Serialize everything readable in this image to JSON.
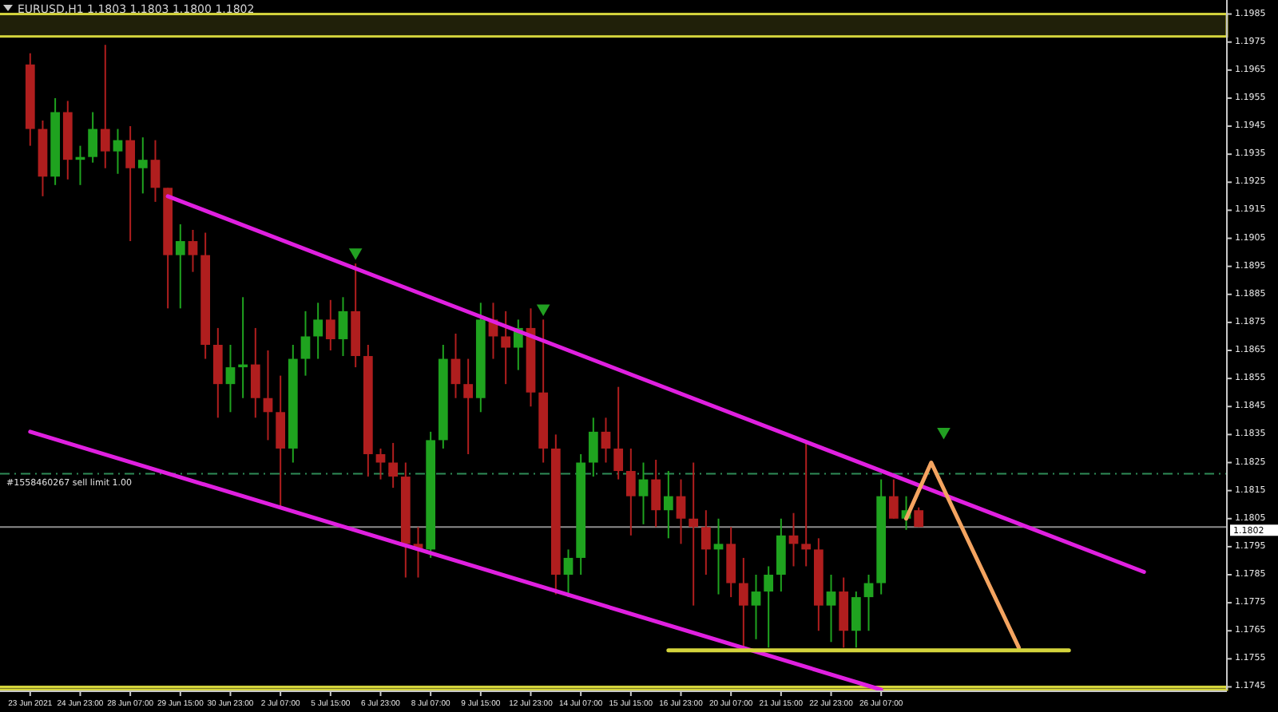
{
  "chart_data": {
    "type": "candlestick",
    "title": "EURUSD,H1  1.1803 1.1803 1.1800 1.1802",
    "categories": [
      "23 Jun 2021",
      null,
      null,
      null,
      "24 Jun 23:00",
      null,
      null,
      null,
      "28 Jun 07:00",
      null,
      null,
      null,
      "29 Jun 15:00",
      null,
      null,
      null,
      "30 Jun 23:00",
      null,
      null,
      null,
      "2 Jul 07:00",
      null,
      null,
      null,
      "5 Jul 15:00",
      null,
      null,
      null,
      "6 Jul 23:00",
      null,
      null,
      null,
      "8 Jul 07:00",
      null,
      null,
      null,
      "9 Jul 15:00",
      null,
      null,
      null,
      "12 Jul 23:00",
      null,
      null,
      null,
      "14 Jul 07:00",
      null,
      null,
      null,
      "15 Jul 15:00",
      null,
      null,
      null,
      "16 Jul 23:00",
      null,
      null,
      null,
      "20 Jul 07:00",
      null,
      null,
      null,
      "21 Jul 15:00",
      null,
      null,
      null,
      "22 Jul 23:00",
      null,
      null,
      null,
      "26 Jul 07:00",
      null,
      null,
      null,
      null,
      null,
      null,
      null,
      null,
      null,
      null,
      null,
      null,
      null,
      null,
      null,
      null,
      null,
      null,
      null,
      null,
      null,
      null,
      null,
      null,
      null,
      null,
      null
    ],
    "ohlc": [
      [
        1.1967,
        1.1971,
        1.1938,
        1.1944
      ],
      [
        1.1944,
        1.1947,
        1.192,
        1.1927
      ],
      [
        1.1927,
        1.1955,
        1.1924,
        1.195
      ],
      [
        1.195,
        1.1954,
        1.1926,
        1.1933
      ],
      [
        1.1933,
        1.1938,
        1.1924,
        1.1934
      ],
      [
        1.1934,
        1.195,
        1.1932,
        1.1944
      ],
      [
        1.1944,
        1.1974,
        1.193,
        1.1936
      ],
      [
        1.1936,
        1.1944,
        1.1928,
        1.194
      ],
      [
        1.194,
        1.1945,
        1.1904,
        1.193
      ],
      [
        1.193,
        1.1941,
        1.1921,
        1.1933
      ],
      [
        1.1933,
        1.194,
        1.1918,
        1.1923
      ],
      [
        1.1923,
        1.1923,
        1.188,
        1.1899
      ],
      [
        1.1899,
        1.191,
        1.188,
        1.1904
      ],
      [
        1.1904,
        1.1908,
        1.1893,
        1.1899
      ],
      [
        1.1899,
        1.1907,
        1.1862,
        1.1867
      ],
      [
        1.1867,
        1.1873,
        1.1841,
        1.1853
      ],
      [
        1.1853,
        1.1867,
        1.1843,
        1.1859
      ],
      [
        1.1859,
        1.1884,
        1.1848,
        1.186
      ],
      [
        1.186,
        1.1873,
        1.1841,
        1.1848
      ],
      [
        1.1848,
        1.1865,
        1.1833,
        1.1843
      ],
      [
        1.1843,
        1.1856,
        1.1809,
        1.183
      ],
      [
        1.183,
        1.1867,
        1.1825,
        1.1862
      ],
      [
        1.1862,
        1.1879,
        1.1856,
        1.187
      ],
      [
        1.187,
        1.1882,
        1.1862,
        1.1876
      ],
      [
        1.1876,
        1.1883,
        1.1865,
        1.1869
      ],
      [
        1.1869,
        1.1884,
        1.1863,
        1.1879
      ],
      [
        1.1879,
        1.1896,
        1.1859,
        1.1863
      ],
      [
        1.1863,
        1.1867,
        1.182,
        1.1828
      ],
      [
        1.1828,
        1.183,
        1.1819,
        1.1825
      ],
      [
        1.1825,
        1.1832,
        1.1816,
        1.182
      ],
      [
        1.182,
        1.1825,
        1.1784,
        1.1796
      ],
      [
        1.1796,
        1.1802,
        1.1784,
        1.1794
      ],
      [
        1.1794,
        1.1836,
        1.1791,
        1.1833
      ],
      [
        1.1833,
        1.1867,
        1.183,
        1.1862
      ],
      [
        1.1862,
        1.1871,
        1.1848,
        1.1853
      ],
      [
        1.1853,
        1.1862,
        1.1828,
        1.1848
      ],
      [
        1.1848,
        1.1882,
        1.1843,
        1.1876
      ],
      [
        1.1876,
        1.1882,
        1.1862,
        1.187
      ],
      [
        1.187,
        1.1879,
        1.1853,
        1.1866
      ],
      [
        1.1866,
        1.1876,
        1.1858,
        1.1873
      ],
      [
        1.1873,
        1.188,
        1.1845,
        1.185
      ],
      [
        1.185,
        1.1876,
        1.1825,
        1.183
      ],
      [
        1.183,
        1.1835,
        1.1778,
        1.1785
      ],
      [
        1.1785,
        1.1794,
        1.1777,
        1.1791
      ],
      [
        1.1791,
        1.1828,
        1.1785,
        1.1825
      ],
      [
        1.1825,
        1.1841,
        1.182,
        1.1836
      ],
      [
        1.1836,
        1.1841,
        1.1825,
        1.183
      ],
      [
        1.183,
        1.1852,
        1.1819,
        1.1822
      ],
      [
        1.1822,
        1.183,
        1.1799,
        1.1813
      ],
      [
        1.1813,
        1.1825,
        1.1803,
        1.1819
      ],
      [
        1.1819,
        1.1826,
        1.1802,
        1.1808
      ],
      [
        1.1808,
        1.1822,
        1.1798,
        1.1813
      ],
      [
        1.1813,
        1.1819,
        1.1796,
        1.1805
      ],
      [
        1.1805,
        1.1825,
        1.1774,
        1.1802
      ],
      [
        1.1802,
        1.1808,
        1.1785,
        1.1794
      ],
      [
        1.1794,
        1.1805,
        1.1778,
        1.1796
      ],
      [
        1.1796,
        1.1802,
        1.1777,
        1.1782
      ],
      [
        1.1782,
        1.1791,
        1.1759,
        1.1774
      ],
      [
        1.1774,
        1.1785,
        1.1762,
        1.1779
      ],
      [
        1.1779,
        1.1788,
        1.1759,
        1.1785
      ],
      [
        1.1785,
        1.1805,
        1.1779,
        1.1799
      ],
      [
        1.1799,
        1.1807,
        1.1788,
        1.1796
      ],
      [
        1.1796,
        1.1832,
        1.1788,
        1.1794
      ],
      [
        1.1794,
        1.1798,
        1.1765,
        1.1774
      ],
      [
        1.1774,
        1.1785,
        1.1761,
        1.1779
      ],
      [
        1.1779,
        1.1784,
        1.1759,
        1.1765
      ],
      [
        1.1765,
        1.1779,
        1.1759,
        1.1777
      ],
      [
        1.1777,
        1.1785,
        1.1765,
        1.1782
      ],
      [
        1.1782,
        1.1819,
        1.1778,
        1.1813
      ],
      [
        1.1813,
        1.1819,
        1.1805,
        1.1805
      ],
      [
        1.1805,
        1.1813,
        1.1801,
        1.1808
      ],
      [
        1.1808,
        1.1809,
        1.1802,
        1.1802
      ],
      null,
      null,
      null,
      null,
      null,
      null,
      null,
      null,
      null,
      null,
      null,
      null,
      null,
      null,
      null,
      null,
      null,
      null,
      null,
      null,
      null,
      null,
      null,
      null
    ],
    "series": [
      {
        "type": "line",
        "color": "#e020e0",
        "values": [
          null,
          null,
          null,
          null,
          null,
          null,
          null,
          null,
          null,
          null,
          null,
          1.192,
          null,
          null,
          null,
          null,
          null,
          null,
          null,
          null,
          null,
          null,
          null,
          null,
          null,
          null,
          null,
          null,
          null,
          null,
          null,
          null,
          null,
          null,
          null,
          null,
          null,
          null,
          null,
          null,
          null,
          null,
          null,
          null,
          null,
          null,
          null,
          null,
          null,
          null,
          null,
          null,
          null,
          null,
          null,
          null,
          null,
          null,
          null,
          null,
          null,
          null,
          null,
          null,
          null,
          null,
          null,
          null,
          null,
          null,
          null,
          null,
          null,
          null,
          null,
          null,
          null,
          null,
          null,
          null,
          null,
          null,
          null,
          null,
          null,
          null,
          null,
          null,
          null,
          1.1786,
          null,
          null,
          null,
          null,
          null,
          null
        ]
      },
      {
        "type": "line",
        "color": "#e020e0",
        "values": [
          1.1836,
          null,
          null,
          null,
          null,
          null,
          null,
          null,
          null,
          null,
          null,
          null,
          null,
          null,
          null,
          null,
          null,
          null,
          null,
          null,
          null,
          null,
          null,
          null,
          null,
          null,
          null,
          null,
          null,
          null,
          null,
          null,
          null,
          null,
          null,
          null,
          null,
          null,
          null,
          null,
          null,
          null,
          null,
          null,
          null,
          null,
          null,
          null,
          null,
          null,
          null,
          null,
          null,
          null,
          null,
          null,
          null,
          null,
          null,
          null,
          null,
          null,
          null,
          null,
          null,
          null,
          null,
          null,
          1.1744,
          null,
          null,
          null,
          null,
          null,
          null,
          null,
          null,
          null,
          null,
          null,
          null,
          null,
          null,
          null,
          null,
          null,
          null,
          null,
          null,
          null,
          null,
          null,
          null,
          null,
          null,
          null
        ]
      },
      {
        "type": "line",
        "color": "#f4a460",
        "values": [
          null,
          null,
          null,
          null,
          null,
          null,
          null,
          null,
          null,
          null,
          null,
          null,
          null,
          null,
          null,
          null,
          null,
          null,
          null,
          null,
          null,
          null,
          null,
          null,
          null,
          null,
          null,
          null,
          null,
          null,
          null,
          null,
          null,
          null,
          null,
          null,
          null,
          null,
          null,
          null,
          null,
          null,
          null,
          null,
          null,
          null,
          null,
          null,
          null,
          null,
          null,
          null,
          null,
          null,
          null,
          null,
          null,
          null,
          null,
          null,
          null,
          null,
          null,
          null,
          null,
          null,
          null,
          null,
          null,
          null,
          1.1805,
          null,
          1.1825,
          null,
          null,
          null,
          null,
          null,
          null,
          1.1759,
          null,
          null,
          null,
          null,
          null,
          null,
          null,
          null,
          null,
          null,
          null,
          null,
          null,
          null,
          null,
          null
        ]
      },
      {
        "type": "line",
        "color": "#d4d43c",
        "values": [
          null,
          null,
          null,
          null,
          null,
          null,
          null,
          null,
          null,
          null,
          null,
          null,
          null,
          null,
          null,
          null,
          null,
          null,
          null,
          null,
          null,
          null,
          null,
          null,
          null,
          null,
          null,
          null,
          null,
          null,
          null,
          null,
          null,
          null,
          null,
          null,
          null,
          null,
          null,
          null,
          null,
          null,
          null,
          null,
          null,
          null,
          null,
          null,
          null,
          null,
          null,
          1.1758,
          null,
          null,
          null,
          null,
          null,
          null,
          null,
          null,
          null,
          null,
          null,
          null,
          null,
          null,
          null,
          null,
          null,
          null,
          null,
          null,
          null,
          null,
          null,
          null,
          null,
          null,
          null,
          null,
          null,
          null,
          null,
          1.1758,
          null,
          null,
          null,
          null,
          null,
          null,
          null,
          null,
          null,
          null,
          null,
          null
        ]
      },
      {
        "type": "scatter",
        "color": "#22a022",
        "marker": "triangle",
        "values": [
          null,
          null,
          null,
          null,
          null,
          null,
          null,
          null,
          null,
          null,
          null,
          null,
          null,
          null,
          null,
          null,
          null,
          null,
          null,
          null,
          null,
          null,
          null,
          null,
          null,
          null,
          1.19,
          null,
          null,
          null,
          null,
          null,
          null,
          null,
          null,
          null,
          null,
          null,
          null,
          null,
          null,
          1.188,
          null,
          null,
          null,
          null,
          null,
          null,
          null,
          null,
          null,
          null,
          null,
          null,
          null,
          null,
          null,
          null,
          null,
          null,
          null,
          null,
          null,
          null,
          null,
          null,
          null,
          null,
          null,
          null,
          null,
          null,
          null,
          1.1836,
          null,
          null,
          null,
          null,
          null,
          null,
          null,
          null,
          null,
          null,
          null,
          null,
          null,
          null,
          null,
          null,
          null,
          null,
          null,
          null,
          null,
          null
        ]
      }
    ],
    "ylim": [
      1.1744,
      1.199
    ],
    "yticks": [
      1.1985,
      1.1975,
      1.1965,
      1.1955,
      1.1945,
      1.1935,
      1.1925,
      1.1915,
      1.1905,
      1.1895,
      1.1885,
      1.1875,
      1.1865,
      1.1855,
      1.1845,
      1.1835,
      1.1825,
      1.1815,
      1.1805,
      1.1795,
      1.1785,
      1.1775,
      1.1765,
      1.1755,
      1.1745
    ],
    "ref_lines": [
      {
        "axis": "y",
        "value": 1.1802,
        "label": "1.1802",
        "color": "#8c8c8c"
      },
      {
        "axis": "y",
        "value": 1.1821,
        "label": "#1558460267 sell limit 1.00",
        "color": "#2e8b57",
        "line_style": "dashed"
      }
    ],
    "bands": [
      {
        "axis": "y",
        "from": 1.1977,
        "to": 1.1985,
        "color": "#d4d43c"
      },
      {
        "axis": "y",
        "from": 1.1744,
        "to": 1.1745,
        "color": "#d4d43c"
      }
    ]
  }
}
